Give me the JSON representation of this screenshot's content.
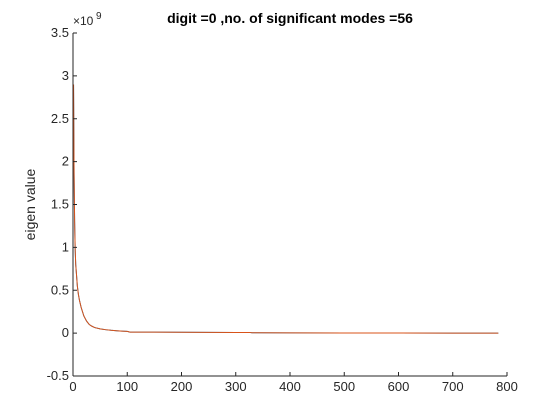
{
  "chart_data": {
    "type": "line",
    "title": "digit =0 ,no. of significant modes =56",
    "xlabel": "",
    "ylabel": "eigen value",
    "xlim": [
      0,
      800
    ],
    "ylim": [
      -0.5,
      3.5
    ],
    "y_exponent_label": "×10",
    "y_exponent_power": "9",
    "x_ticks": [
      0,
      100,
      200,
      300,
      400,
      500,
      600,
      700,
      800
    ],
    "x_tick_labels": [
      "0",
      "100",
      "200",
      "300",
      "400",
      "500",
      "600",
      "700",
      "800"
    ],
    "y_ticks": [
      -0.5,
      0,
      0.5,
      1,
      1.5,
      2,
      2.5,
      3,
      3.5
    ],
    "y_tick_labels": [
      "-0.5",
      "0",
      "0.5",
      "1",
      "1.5",
      "2",
      "2.5",
      "3",
      "3.5"
    ],
    "grid": false,
    "series": [
      {
        "color": "#0072bd",
        "x": [
          1,
          2,
          3,
          4,
          5,
          6,
          8,
          10,
          12,
          15,
          20,
          25,
          30,
          35,
          40,
          50,
          60,
          70,
          80,
          90,
          100,
          105,
          150,
          200,
          250,
          300,
          325,
          330,
          400,
          500,
          600,
          700,
          784
        ],
        "y": [
          2.9,
          1.85,
          1.3,
          0.98,
          0.8,
          0.72,
          0.55,
          0.45,
          0.38,
          0.3,
          0.2,
          0.14,
          0.1,
          0.08,
          0.065,
          0.05,
          0.04,
          0.033,
          0.028,
          0.024,
          0.02,
          0.012,
          0.011,
          0.01,
          0.009,
          0.008,
          0.008,
          0.004,
          0.003,
          0.002,
          0.001,
          0.0005,
          0.0
        ]
      },
      {
        "color": "#d95319",
        "x": [
          1,
          2,
          3,
          4,
          5,
          6,
          8,
          10,
          12,
          15,
          20,
          25,
          30,
          35,
          40,
          50,
          60,
          70,
          80,
          90,
          100,
          105,
          150,
          200,
          250,
          300,
          325,
          330,
          400,
          500,
          600,
          700,
          784
        ],
        "y": [
          2.9,
          1.85,
          1.3,
          0.98,
          0.8,
          0.72,
          0.55,
          0.45,
          0.38,
          0.3,
          0.2,
          0.14,
          0.1,
          0.08,
          0.065,
          0.05,
          0.04,
          0.033,
          0.028,
          0.024,
          0.02,
          0.012,
          0.011,
          0.01,
          0.009,
          0.008,
          0.008,
          0.004,
          0.003,
          0.002,
          0.001,
          0.0005,
          0.0
        ]
      }
    ]
  }
}
